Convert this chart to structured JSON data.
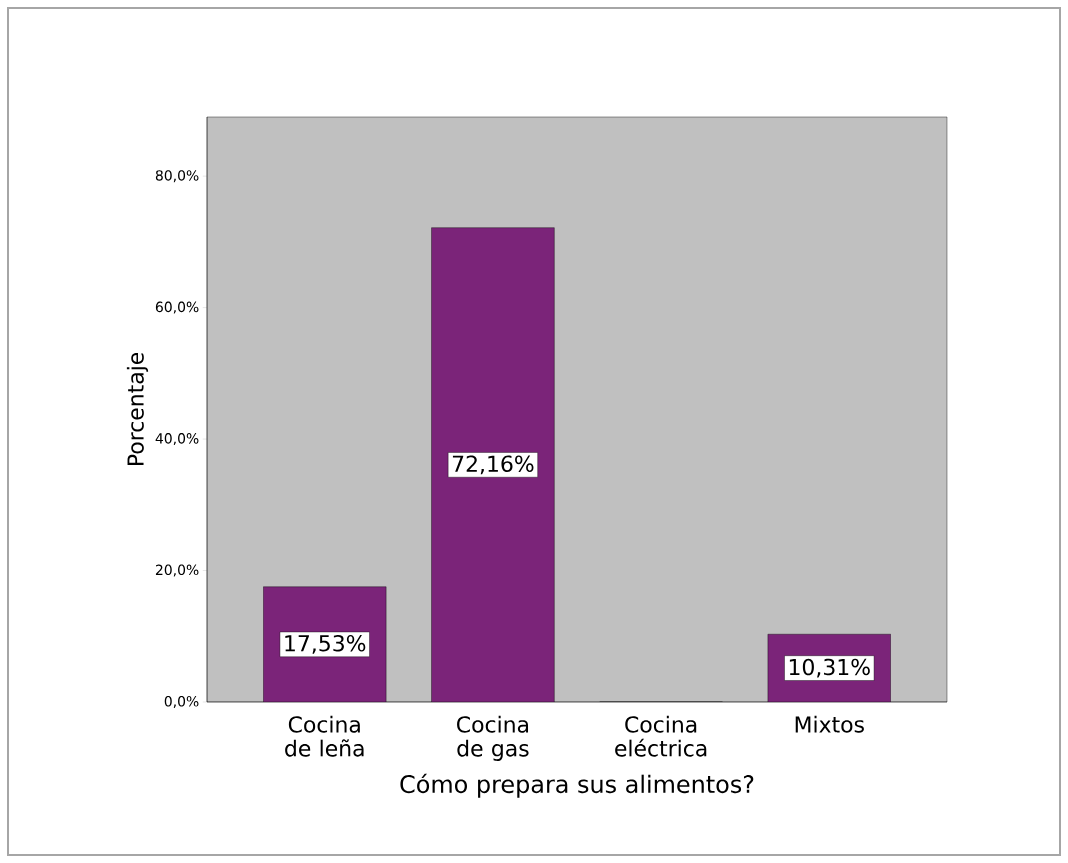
{
  "chart_data": {
    "type": "bar",
    "xlabel": "Cómo prepara sus alimentos?",
    "ylabel": "Porcentaje",
    "categories": [
      "Cocina de leña",
      "Cocina de gas",
      "Cocina eléctrica",
      "Mixtos"
    ],
    "values": [
      17.53,
      72.16,
      0,
      10.31
    ],
    "value_labels": [
      "17,53%",
      "72,16%",
      null,
      "10,31%"
    ],
    "color": "#7b2479",
    "ylim": [
      0,
      89
    ],
    "yticks": [
      {
        "value": 0,
        "label": "0,0%"
      },
      {
        "value": 20,
        "label": "20,0%"
      },
      {
        "value": 40,
        "label": "40,0%"
      },
      {
        "value": 60,
        "label": "60,0%"
      },
      {
        "value": 80,
        "label": "80,0%"
      }
    ]
  }
}
